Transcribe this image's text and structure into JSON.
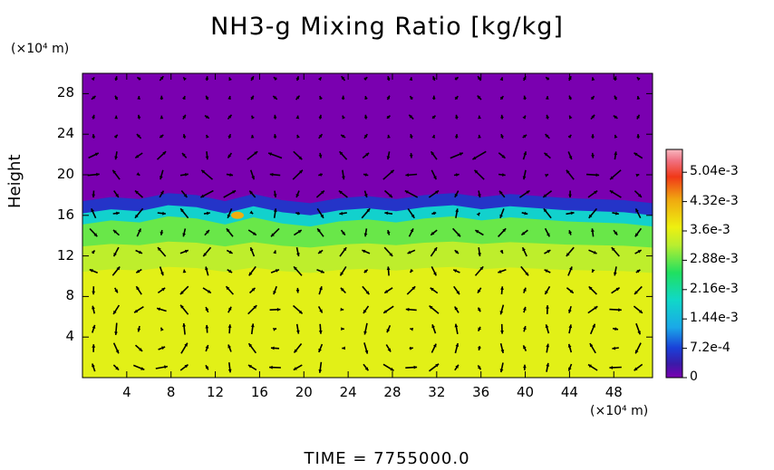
{
  "chart_data": {
    "type": "heatmap",
    "title": "NH3-g Mixing Ratio [kg/kg]",
    "ylabel": "Height",
    "x_unit": "(×10⁴ m)",
    "y_unit": "(×10⁴ m)",
    "xlim": [
      0,
      51.5
    ],
    "ylim": [
      0,
      30
    ],
    "x_ticks": [
      "4",
      "8",
      "12",
      "16",
      "20",
      "24",
      "28",
      "32",
      "36",
      "40",
      "44",
      "48"
    ],
    "y_ticks": [
      "4",
      "8",
      "12",
      "16",
      "20",
      "24",
      "28"
    ],
    "colorbar": {
      "min": 0,
      "max": 0.0056,
      "ticks": [
        "5.04e-3",
        "4.32e-3",
        "3.6e-3",
        "2.88e-3",
        "2.16e-3",
        "1.44e-3",
        "7.2e-4",
        "0"
      ],
      "tick_values": [
        0.00504,
        0.00432,
        0.0036,
        0.00288,
        0.00216,
        0.00144,
        0.00072,
        0
      ]
    },
    "field_layers": [
      {
        "y_from": 0,
        "y_to": 10.5,
        "value": 0.0036
      },
      {
        "y_from": 10.5,
        "y_to": 13,
        "value": 0.0033
      },
      {
        "y_from": 13,
        "y_to": 15.2,
        "value": 0.0029
      },
      {
        "y_from": 15.2,
        "y_to": 16.3,
        "value": 0.0018
      },
      {
        "y_from": 16.3,
        "y_to": 17.5,
        "value": 0.0006
      },
      {
        "y_from": 17.5,
        "y_to": 30,
        "value": 0
      }
    ],
    "interface_height": [
      16.2,
      16.6,
      16.4,
      17.0,
      16.8,
      16.2,
      16.9,
      16.3,
      16.0,
      16.5,
      16.7,
      16.4,
      16.8,
      17.0,
      16.6,
      16.9,
      16.7,
      16.5,
      16.4,
      16.3,
      16.0
    ],
    "local_max": {
      "x": 14,
      "y": 16,
      "value": 0.0043
    },
    "circulation_cells": [
      {
        "x": 6.5,
        "y": 4.5,
        "radius": 3.3
      },
      {
        "x": 17.5,
        "y": 4.5,
        "radius": 3.0
      },
      {
        "x": 29.5,
        "y": 4.0,
        "radius": 3.5
      },
      {
        "x": 48,
        "y": 4.0,
        "radius": 2.8
      }
    ]
  },
  "footer": {
    "time_label": "TIME  =  7755000.0"
  }
}
